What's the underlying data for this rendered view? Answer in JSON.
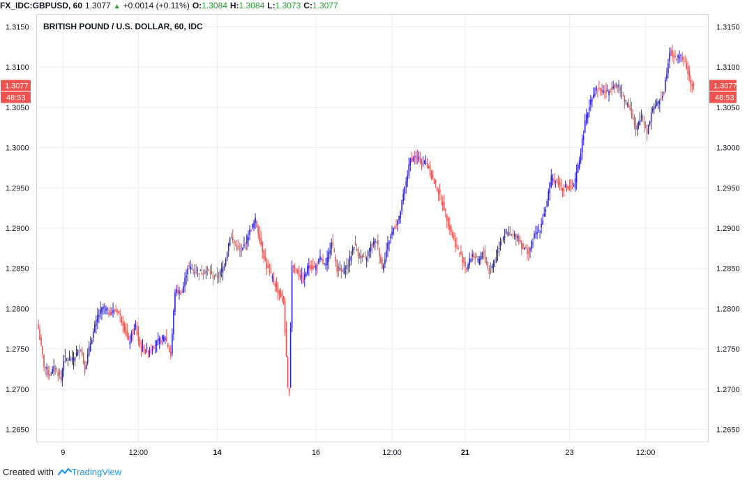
{
  "header": {
    "symbol": "FX_IDC:GBPUSD, 60",
    "last": "1.3077",
    "change": "+0.0014 (+0.11%)",
    "o_label": "O:",
    "o_value": "1.3084",
    "h_label": "H:",
    "h_value": "1.3084",
    "l_label": "L:",
    "l_value": "1.3073",
    "c_label": "C:",
    "c_value": "1.3077"
  },
  "footer": {
    "created_with": "Created with",
    "brand": "TradingView"
  },
  "colors": {
    "up": "#2b20e8",
    "down": "#ef5350",
    "grid": "#e8eef3",
    "badge": "#ef5350",
    "brand": "#2196f3"
  },
  "chart_data": {
    "type": "candlestick",
    "title": "BRITISH POUND / U.S. DOLLAR, 60, IDC",
    "ylim": [
      1.2635,
      1.3165
    ],
    "y_ticks": [
      "1.2650",
      "1.2700",
      "1.2750",
      "1.2800",
      "1.2850",
      "1.2900",
      "1.2950",
      "1.3000",
      "1.3050",
      "1.3100",
      "1.3150"
    ],
    "x_ticks": [
      {
        "label": "9",
        "bold": false,
        "i": 17.5
      },
      {
        "label": "12:00",
        "bold": false,
        "i": 71
      },
      {
        "label": "14",
        "bold": true,
        "i": 127
      },
      {
        "label": "16",
        "bold": false,
        "i": 197
      },
      {
        "label": "12:00",
        "bold": false,
        "i": 251
      },
      {
        "label": "21",
        "bold": true,
        "i": 303
      },
      {
        "label": "23",
        "bold": false,
        "i": 377
      },
      {
        "label": "12:00",
        "bold": false,
        "i": 431
      }
    ],
    "last_price_label": "1.3077",
    "countdown_label": "48:53",
    "last_price": 1.3077,
    "anchors": [
      [
        0,
        1.2775
      ],
      [
        4,
        1.273
      ],
      [
        8,
        1.2718
      ],
      [
        12,
        1.2728
      ],
      [
        16,
        1.2712
      ],
      [
        18,
        1.2738
      ],
      [
        24,
        1.2736
      ],
      [
        30,
        1.2752
      ],
      [
        33,
        1.2725
      ],
      [
        37,
        1.2758
      ],
      [
        42,
        1.279
      ],
      [
        46,
        1.2802
      ],
      [
        50,
        1.2795
      ],
      [
        56,
        1.2798
      ],
      [
        60,
        1.2782
      ],
      [
        64,
        1.2758
      ],
      [
        69,
        1.2778
      ],
      [
        72,
        1.2752
      ],
      [
        78,
        1.2747
      ],
      [
        84,
        1.2758
      ],
      [
        90,
        1.2765
      ],
      [
        94,
        1.2742
      ],
      [
        97,
        1.2822
      ],
      [
        102,
        1.282
      ],
      [
        106,
        1.2852
      ],
      [
        110,
        1.2848
      ],
      [
        116,
        1.2845
      ],
      [
        120,
        1.2848
      ],
      [
        124,
        1.284
      ],
      [
        128,
        1.284
      ],
      [
        132,
        1.2855
      ],
      [
        136,
        1.289
      ],
      [
        140,
        1.2878
      ],
      [
        144,
        1.287
      ],
      [
        150,
        1.2896
      ],
      [
        154,
        1.291
      ],
      [
        158,
        1.288
      ],
      [
        162,
        1.2852
      ],
      [
        166,
        1.2838
      ],
      [
        170,
        1.2822
      ],
      [
        174,
        1.281
      ],
      [
        177,
        1.27
      ],
      [
        178,
        1.27
      ],
      [
        180,
        1.2855
      ],
      [
        184,
        1.2845
      ],
      [
        188,
        1.2835
      ],
      [
        192,
        1.2855
      ],
      [
        196,
        1.285
      ],
      [
        200,
        1.2862
      ],
      [
        204,
        1.2852
      ],
      [
        208,
        1.2885
      ],
      [
        212,
        1.285
      ],
      [
        216,
        1.2845
      ],
      [
        220,
        1.2855
      ],
      [
        224,
        1.288
      ],
      [
        228,
        1.2865
      ],
      [
        232,
        1.286
      ],
      [
        236,
        1.2878
      ],
      [
        240,
        1.2885
      ],
      [
        244,
        1.285
      ],
      [
        248,
        1.288
      ],
      [
        252,
        1.29
      ],
      [
        256,
        1.2912
      ],
      [
        260,
        1.295
      ],
      [
        264,
        1.2985
      ],
      [
        268,
        1.2988
      ],
      [
        272,
        1.2982
      ],
      [
        276,
        1.298
      ],
      [
        280,
        1.296
      ],
      [
        284,
        1.2945
      ],
      [
        288,
        1.2925
      ],
      [
        292,
        1.29
      ],
      [
        296,
        1.288
      ],
      [
        300,
        1.2865
      ],
      [
        304,
        1.285
      ],
      [
        308,
        1.2868
      ],
      [
        312,
        1.2858
      ],
      [
        316,
        1.287
      ],
      [
        320,
        1.2845
      ],
      [
        324,
        1.286
      ],
      [
        328,
        1.2885
      ],
      [
        332,
        1.2895
      ],
      [
        336,
        1.289
      ],
      [
        340,
        1.289
      ],
      [
        344,
        1.2875
      ],
      [
        348,
        1.287
      ],
      [
        352,
        1.289
      ],
      [
        356,
        1.29
      ],
      [
        360,
        1.2925
      ],
      [
        364,
        1.2962
      ],
      [
        368,
        1.2958
      ],
      [
        372,
        1.295
      ],
      [
        376,
        1.295
      ],
      [
        380,
        1.295
      ],
      [
        384,
        1.2985
      ],
      [
        388,
        1.303
      ],
      [
        392,
        1.306
      ],
      [
        396,
        1.3073
      ],
      [
        400,
        1.307
      ],
      [
        404,
        1.3068
      ],
      [
        408,
        1.3078
      ],
      [
        412,
        1.3075
      ],
      [
        416,
        1.306
      ],
      [
        420,
        1.305
      ],
      [
        424,
        1.302
      ],
      [
        428,
        1.304
      ],
      [
        432,
        1.302
      ],
      [
        436,
        1.305
      ],
      [
        440,
        1.3055
      ],
      [
        444,
        1.307
      ],
      [
        448,
        1.312
      ],
      [
        452,
        1.311
      ],
      [
        456,
        1.3115
      ],
      [
        460,
        1.31
      ],
      [
        463,
        1.3078
      ],
      [
        465,
        1.3077
      ]
    ]
  }
}
